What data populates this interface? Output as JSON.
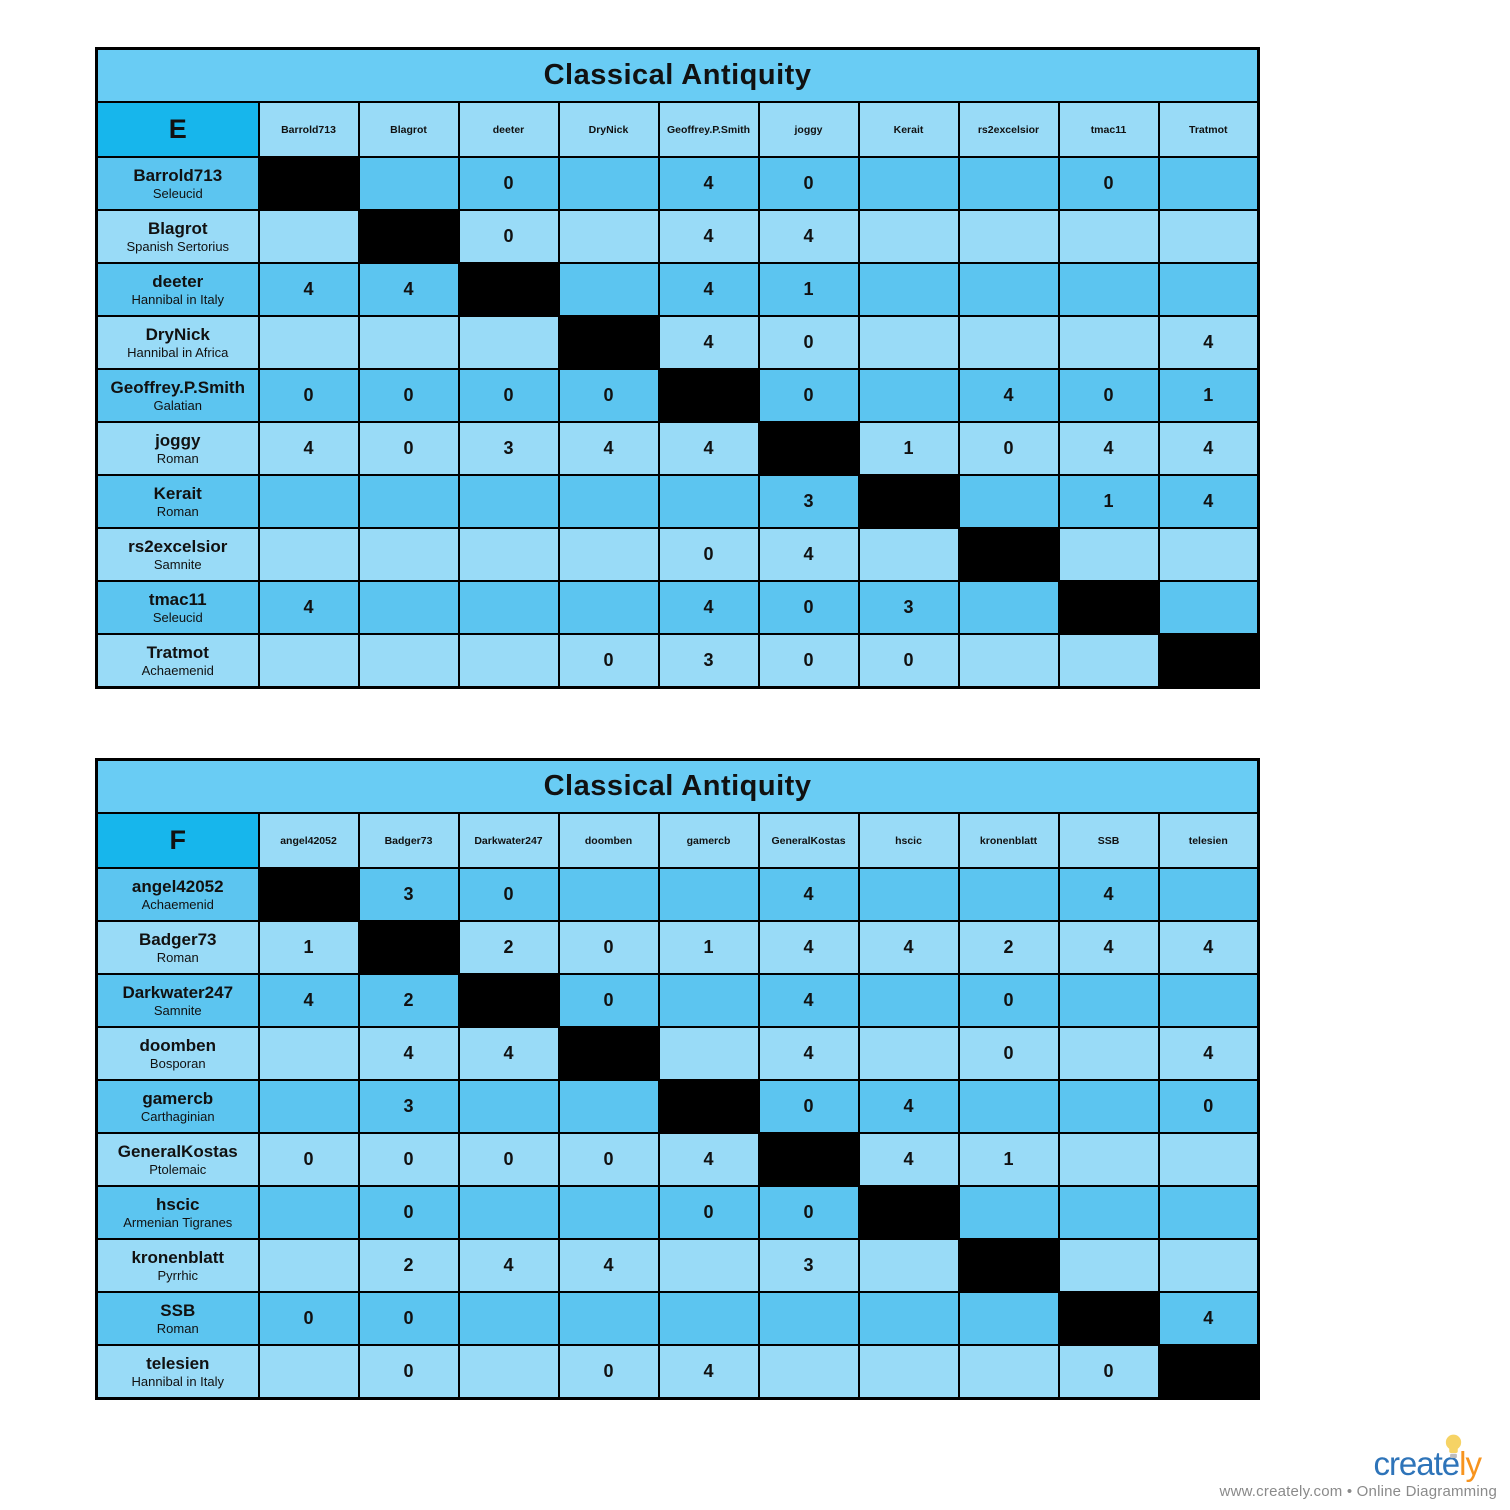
{
  "colors": {
    "row_dark": "#5cc5f0",
    "row_light": "#99dbf7",
    "corner": "#17b6ec",
    "title_bar": "#69ccf4",
    "diagonal": "#000000",
    "border": "#000000",
    "logo_blue": "#2e74b9",
    "logo_orange": "#f7941e",
    "bulb_yellow": "#f6d365",
    "tagline_gray": "#8a8a8a"
  },
  "branding": {
    "logo_text_blue": "create",
    "logo_text_orange": "ly",
    "lightbulb_icon": "lightbulb-icon",
    "tagline": "www.creately.com • Online Diagramming"
  },
  "tables": [
    {
      "title": "Classical Antiquity",
      "corner_label": "E",
      "columns": [
        "Barrold713",
        "Blagrot",
        "deeter",
        "DryNick",
        "Geoffrey.P.Smith",
        "joggy",
        "Kerait",
        "rs2excelsior",
        "tmac11",
        "Tratmot"
      ],
      "rows": [
        {
          "player": "Barrold713",
          "faction": "Seleucid",
          "results": [
            "",
            "",
            "0",
            "",
            "4",
            "0",
            "",
            "",
            "0",
            ""
          ]
        },
        {
          "player": "Blagrot",
          "faction": "Spanish Sertorius",
          "results": [
            "",
            "",
            "0",
            "",
            "4",
            "4",
            "",
            "",
            "",
            ""
          ]
        },
        {
          "player": "deeter",
          "faction": "Hannibal in Italy",
          "results": [
            "4",
            "4",
            "",
            "",
            "4",
            "1",
            "",
            "",
            "",
            ""
          ]
        },
        {
          "player": "DryNick",
          "faction": "Hannibal in Africa",
          "results": [
            "",
            "",
            "",
            "",
            "4",
            "0",
            "",
            "",
            "",
            "4"
          ]
        },
        {
          "player": "Geoffrey.P.Smith",
          "faction": "Galatian",
          "results": [
            "0",
            "0",
            "0",
            "0",
            "",
            "0",
            "",
            "4",
            "0",
            "1"
          ]
        },
        {
          "player": "joggy",
          "faction": "Roman",
          "results": [
            "4",
            "0",
            "3",
            "4",
            "4",
            "",
            "1",
            "0",
            "4",
            "4"
          ]
        },
        {
          "player": "Kerait",
          "faction": "Roman",
          "results": [
            "",
            "",
            "",
            "",
            "",
            "3",
            "",
            "",
            "1",
            "4"
          ]
        },
        {
          "player": "rs2excelsior",
          "faction": "Samnite",
          "results": [
            "",
            "",
            "",
            "",
            "0",
            "4",
            "",
            "",
            "",
            ""
          ]
        },
        {
          "player": "tmac11",
          "faction": "Seleucid",
          "results": [
            "4",
            "",
            "",
            "",
            "4",
            "0",
            "3",
            "",
            "",
            ""
          ]
        },
        {
          "player": "Tratmot",
          "faction": "Achaemenid",
          "results": [
            "",
            "",
            "",
            "0",
            "3",
            "0",
            "0",
            "",
            "",
            ""
          ]
        }
      ]
    },
    {
      "title": "Classical Antiquity",
      "corner_label": "F",
      "columns": [
        "angel42052",
        "Badger73",
        "Darkwater247",
        "doomben",
        "gamercb",
        "GeneralKostas",
        "hscic",
        "kronenblatt",
        "SSB",
        "telesien"
      ],
      "rows": [
        {
          "player": "angel42052",
          "faction": "Achaemenid",
          "results": [
            "",
            "3",
            "0",
            "",
            "",
            "4",
            "",
            "",
            "4",
            ""
          ]
        },
        {
          "player": "Badger73",
          "faction": "Roman",
          "results": [
            "1",
            "",
            "2",
            "0",
            "1",
            "4",
            "4",
            "2",
            "4",
            "4"
          ]
        },
        {
          "player": "Darkwater247",
          "faction": "Samnite",
          "results": [
            "4",
            "2",
            "",
            "0",
            "",
            "4",
            "",
            "0",
            "",
            ""
          ]
        },
        {
          "player": "doomben",
          "faction": "Bosporan",
          "results": [
            "",
            "4",
            "4",
            "",
            "",
            "4",
            "",
            "0",
            "",
            "4"
          ]
        },
        {
          "player": "gamercb",
          "faction": "Carthaginian",
          "results": [
            "",
            "3",
            "",
            "",
            "",
            "0",
            "4",
            "",
            "",
            "0"
          ]
        },
        {
          "player": "GeneralKostas",
          "faction": "Ptolemaic",
          "results": [
            "0",
            "0",
            "0",
            "0",
            "4",
            "",
            "4",
            "1",
            "",
            ""
          ]
        },
        {
          "player": "hscic",
          "faction": "Armenian Tigranes",
          "results": [
            "",
            "0",
            "",
            "",
            "0",
            "0",
            "",
            "",
            "",
            ""
          ]
        },
        {
          "player": "kronenblatt",
          "faction": "Pyrrhic",
          "results": [
            "",
            "2",
            "4",
            "4",
            "",
            "3",
            "",
            "",
            "",
            ""
          ]
        },
        {
          "player": "SSB",
          "faction": "Roman",
          "results": [
            "0",
            "0",
            "",
            "",
            "",
            "",
            "",
            "",
            "",
            "4"
          ]
        },
        {
          "player": "telesien",
          "faction": "Hannibal in Italy",
          "results": [
            "",
            "0",
            "",
            "0",
            "4",
            "",
            "",
            "",
            "0",
            ""
          ]
        }
      ]
    }
  ],
  "chart_data": [
    {
      "type": "table",
      "title": "Classical Antiquity",
      "group": "E",
      "columns": [
        "Barrold713",
        "Blagrot",
        "deeter",
        "DryNick",
        "Geoffrey.P.Smith",
        "joggy",
        "Kerait",
        "rs2excelsior",
        "tmac11",
        "Tratmot"
      ],
      "row_labels": [
        "Barrold713 (Seleucid)",
        "Blagrot (Spanish Sertorius)",
        "deeter (Hannibal in Italy)",
        "DryNick (Hannibal in Africa)",
        "Geoffrey.P.Smith (Galatian)",
        "joggy (Roman)",
        "Kerait (Roman)",
        "rs2excelsior (Samnite)",
        "tmac11 (Seleucid)",
        "Tratmot (Achaemenid)"
      ],
      "matrix": [
        [
          null,
          "",
          "0",
          "",
          "4",
          "0",
          "",
          "",
          "0",
          ""
        ],
        [
          "",
          null,
          "0",
          "",
          "4",
          "4",
          "",
          "",
          "",
          ""
        ],
        [
          "4",
          "4",
          null,
          "",
          "4",
          "1",
          "",
          "",
          "",
          ""
        ],
        [
          "",
          "",
          "",
          null,
          "4",
          "0",
          "",
          "",
          "",
          "4"
        ],
        [
          "0",
          "0",
          "0",
          "0",
          null,
          "0",
          "",
          "4",
          "0",
          "1"
        ],
        [
          "4",
          "0",
          "3",
          "4",
          "4",
          null,
          "1",
          "0",
          "4",
          "4"
        ],
        [
          "",
          "",
          "",
          "",
          "",
          "3",
          null,
          "",
          "1",
          "4"
        ],
        [
          "",
          "",
          "",
          "",
          "0",
          "4",
          "",
          null,
          "",
          ""
        ],
        [
          "4",
          "",
          "",
          "",
          "4",
          "0",
          "3",
          "",
          null,
          ""
        ],
        [
          "",
          "",
          "",
          "0",
          "3",
          "0",
          "0",
          "",
          "",
          null
        ]
      ]
    },
    {
      "type": "table",
      "title": "Classical Antiquity",
      "group": "F",
      "columns": [
        "angel42052",
        "Badger73",
        "Darkwater247",
        "doomben",
        "gamercb",
        "GeneralKostas",
        "hscic",
        "kronenblatt",
        "SSB",
        "telesien"
      ],
      "row_labels": [
        "angel42052 (Achaemenid)",
        "Badger73 (Roman)",
        "Darkwater247 (Samnite)",
        "doomben (Bosporan)",
        "gamercb (Carthaginian)",
        "GeneralKostas (Ptolemaic)",
        "hscic (Armenian Tigranes)",
        "kronenblatt (Pyrrhic)",
        "SSB (Roman)",
        "telesien (Hannibal in Italy)"
      ],
      "matrix": [
        [
          null,
          "3",
          "0",
          "",
          "",
          "4",
          "",
          "",
          "4",
          ""
        ],
        [
          "1",
          null,
          "2",
          "0",
          "1",
          "4",
          "4",
          "2",
          "4",
          "4"
        ],
        [
          "4",
          "2",
          null,
          "0",
          "",
          "4",
          "",
          "0",
          "",
          ""
        ],
        [
          "",
          "4",
          "4",
          null,
          "",
          "4",
          "",
          "0",
          "",
          "4"
        ],
        [
          "",
          "3",
          "",
          "",
          null,
          "0",
          "4",
          "",
          "",
          "0"
        ],
        [
          "0",
          "0",
          "0",
          "0",
          "4",
          null,
          "4",
          "1",
          "",
          ""
        ],
        [
          "",
          "0",
          "",
          "",
          "0",
          "0",
          null,
          "",
          "",
          ""
        ],
        [
          "",
          "2",
          "4",
          "4",
          "",
          "3",
          "",
          null,
          "",
          ""
        ],
        [
          "0",
          "0",
          "",
          "",
          "",
          "",
          "",
          "",
          null,
          "4"
        ],
        [
          "",
          "0",
          "",
          "0",
          "4",
          "",
          "",
          "",
          "0",
          null
        ]
      ]
    }
  ]
}
